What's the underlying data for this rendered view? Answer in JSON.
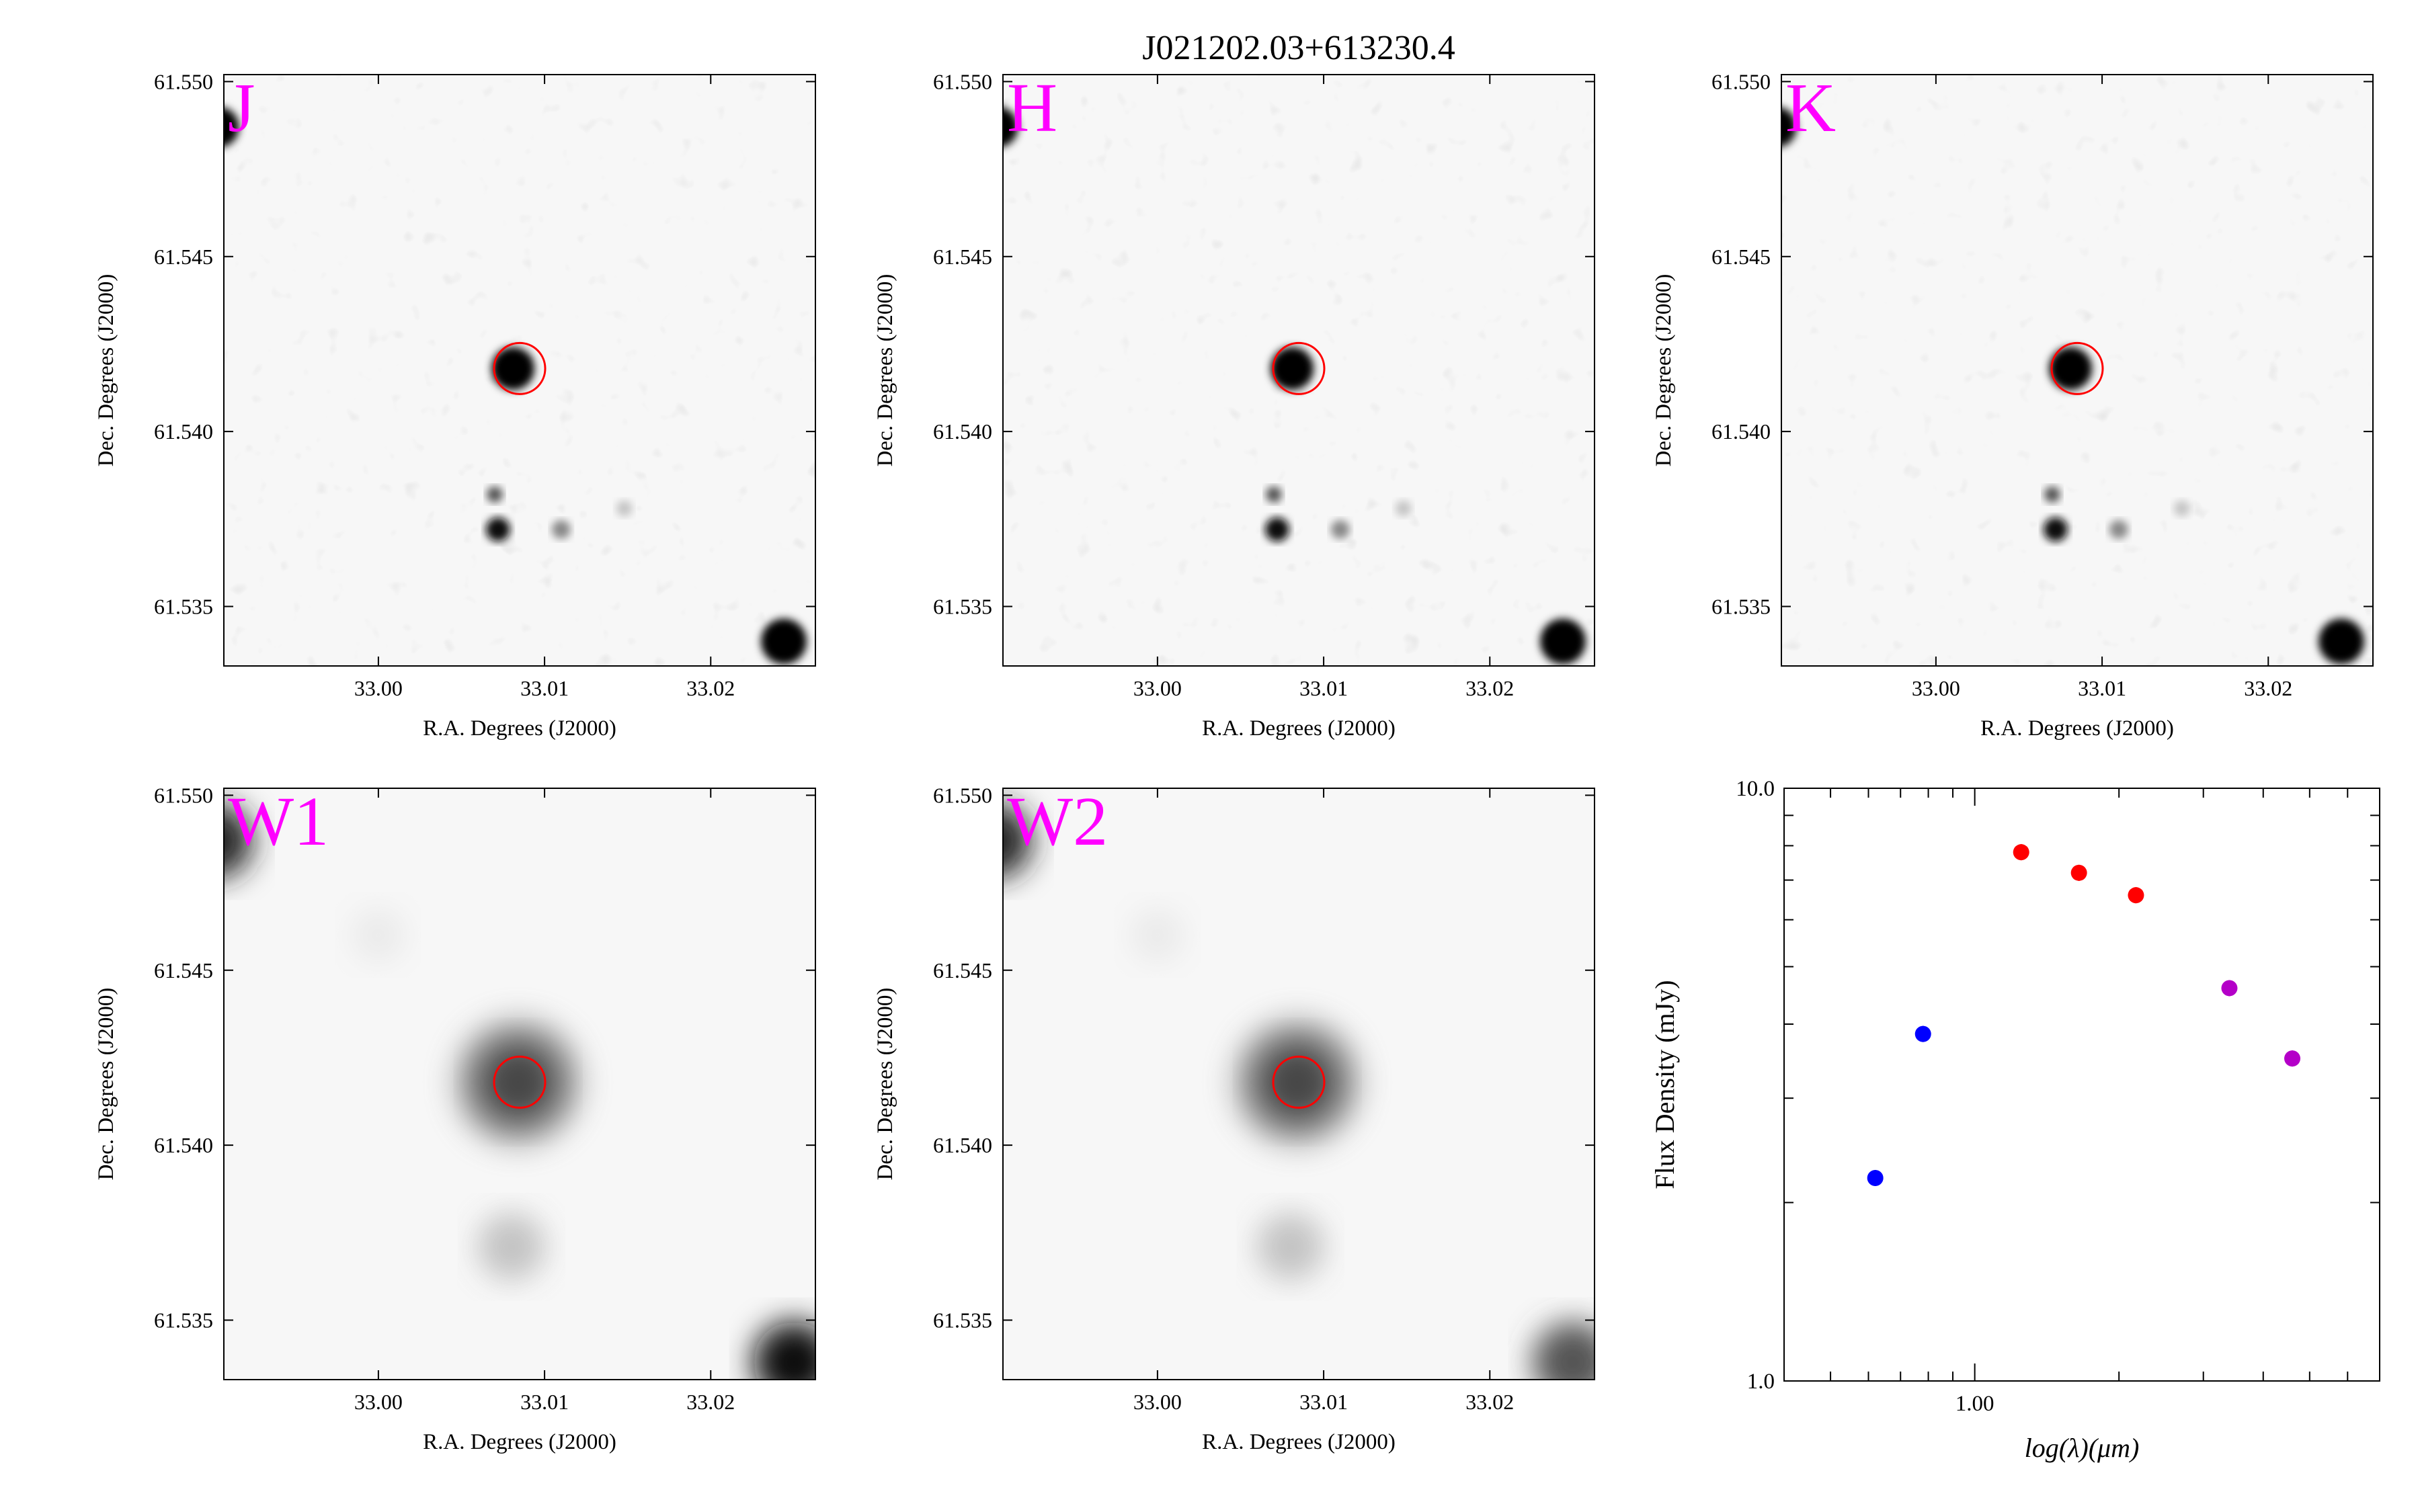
{
  "title": "J021202.03+613230.4",
  "panels": [
    {
      "band": "J"
    },
    {
      "band": "H"
    },
    {
      "band": "K"
    },
    {
      "band": "W1"
    },
    {
      "band": "W2"
    }
  ],
  "image_axes": {
    "xlabel": "R.A. Degrees (J2000)",
    "ylabel": "Dec. Degrees (J2000)",
    "x_ticks": [
      "33.00",
      "33.01",
      "33.02"
    ],
    "y_ticks": [
      "61.550",
      "61.545",
      "61.540",
      "61.535"
    ],
    "ra_range": [
      32.9907,
      33.0263
    ],
    "dec_range": [
      61.5333,
      61.5502
    ],
    "target": {
      "ra": 33.0085,
      "dec": 61.5418
    }
  },
  "chart_data": {
    "type": "scatter",
    "xlabel": "log(λ)(μm)",
    "ylabel": "Flux Density (mJy)",
    "x_scale": "log",
    "y_scale": "log",
    "xlim": [
      0.4,
      7.0
    ],
    "ylim": [
      1.0,
      10.0
    ],
    "x_tick_labels": [
      "1.00"
    ],
    "y_tick_labels": [
      "10.0",
      "1.0"
    ],
    "series": [
      {
        "color": "#0000ff",
        "x": [
          0.62,
          0.78
        ],
        "y": [
          2.2,
          3.85
        ]
      },
      {
        "color": "#ff0000",
        "x": [
          1.25,
          1.65,
          2.17
        ],
        "y": [
          7.8,
          7.2,
          6.6
        ]
      },
      {
        "color": "#b400c8",
        "x": [
          3.4,
          4.6
        ],
        "y": [
          4.6,
          3.5
        ]
      }
    ]
  },
  "colors": {
    "band_label": "#ff00ff",
    "target_circle": "#ff0000"
  }
}
